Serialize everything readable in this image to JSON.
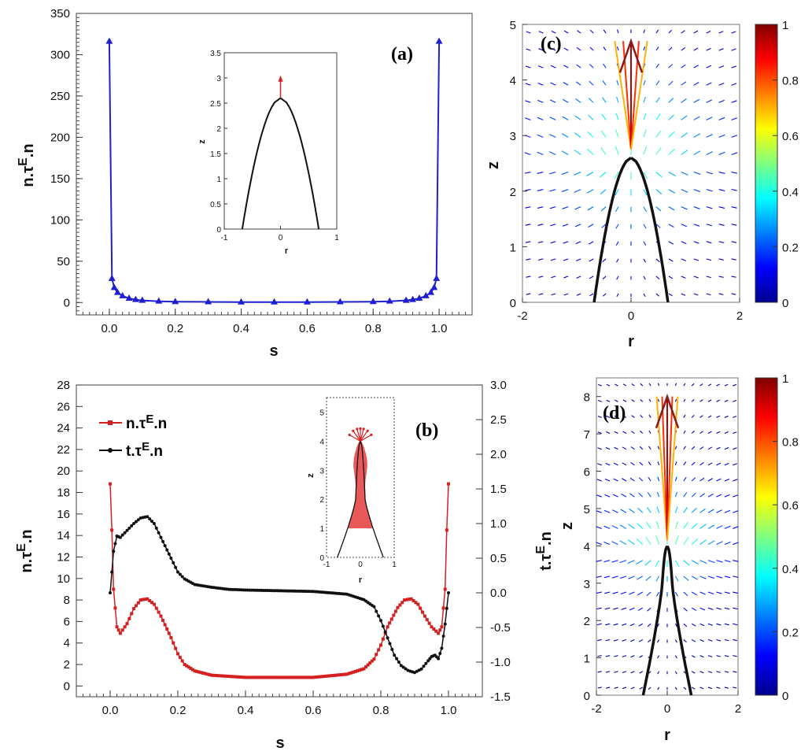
{
  "chart_data": [
    {
      "id": "a",
      "type": "scatter",
      "panel_label": "(a)",
      "xlabel": "s",
      "ylabel": {
        "main": "n.τ",
        "sup": "E",
        "tail": ".n"
      },
      "xlim": [
        -0.1,
        1.1
      ],
      "ylim": [
        -15,
        350
      ],
      "xticks": [
        "0.0",
        "0.2",
        "0.4",
        "0.6",
        "0.8",
        "1.0"
      ],
      "yticks": [
        "0",
        "50",
        "100",
        "150",
        "200",
        "250",
        "300",
        "350"
      ],
      "series": [
        {
          "name": "n.τE.n",
          "color": "#1f1fd0",
          "marker": "triangle",
          "x": [
            0.0,
            0.008,
            0.015,
            0.025,
            0.04,
            0.06,
            0.08,
            0.1,
            0.15,
            0.2,
            0.3,
            0.4,
            0.5,
            0.6,
            0.7,
            0.8,
            0.85,
            0.9,
            0.92,
            0.94,
            0.96,
            0.975,
            0.985,
            0.992,
            1.0
          ],
          "y": [
            316,
            29,
            18,
            12,
            8,
            5,
            3.5,
            2.5,
            1.5,
            1,
            0.7,
            0.5,
            0.5,
            0.5,
            0.7,
            1,
            1.5,
            2.5,
            3.5,
            5,
            8,
            12,
            18,
            29,
            316
          ]
        }
      ],
      "inset": {
        "xlabel": "r",
        "ylabel": "z",
        "xlim": [
          -1,
          1
        ],
        "ylim": [
          0,
          3.5
        ],
        "xticks": [
          "-1",
          "0",
          "1"
        ],
        "yticks": [
          "0",
          "0.5",
          "1",
          "1.5",
          "2",
          "2.5",
          "3",
          "3.5"
        ],
        "tip_z": 2.6,
        "arrow_to_z": 3.05,
        "base_r": 0.68
      }
    },
    {
      "id": "b",
      "type": "line",
      "panel_label": "(b)",
      "xlabel": "s",
      "ylabel": {
        "main": "n.τ",
        "sup": "E",
        "tail": ".n"
      },
      "ylabel_right": {
        "main": "t.τ",
        "sup": "E",
        "tail": ".n"
      },
      "xlim": [
        -0.1,
        1.1
      ],
      "ylim": [
        -1,
        28
      ],
      "ylim_right": [
        -1.5,
        3.0
      ],
      "xticks": [
        "0.0",
        "0.2",
        "0.4",
        "0.6",
        "0.8",
        "1.0"
      ],
      "yticks": [
        "0",
        "2",
        "4",
        "6",
        "8",
        "10",
        "12",
        "14",
        "16",
        "18",
        "20",
        "22",
        "24",
        "26",
        "28"
      ],
      "yticks_right": [
        "-1.5",
        "-1.0",
        "-0.5",
        "0.0",
        "0.5",
        "1.0",
        "1.5",
        "2.0",
        "2.5",
        "3.0"
      ],
      "legend": [
        {
          "main": "n.τ",
          "sup": "E",
          "tail": ".n",
          "color": "#d42020"
        },
        {
          "main": "t.τ",
          "sup": "E",
          "tail": ".n",
          "color": "#111111"
        }
      ],
      "series": [
        {
          "name": "n.τE.n",
          "color": "#d42020",
          "axis": "left",
          "x": [
            0.0,
            0.005,
            0.01,
            0.02,
            0.03,
            0.05,
            0.07,
            0.09,
            0.11,
            0.13,
            0.15,
            0.18,
            0.2,
            0.22,
            0.25,
            0.3,
            0.4,
            0.5,
            0.6,
            0.7,
            0.75,
            0.78,
            0.8,
            0.82,
            0.85,
            0.87,
            0.89,
            0.91,
            0.93,
            0.95,
            0.97,
            0.98,
            0.99,
            0.995,
            1.0
          ],
          "y": [
            18.8,
            14.5,
            9.0,
            5.5,
            4.9,
            5.8,
            7.2,
            8.0,
            8.1,
            7.6,
            6.5,
            4.5,
            3.0,
            2.0,
            1.4,
            1.0,
            0.8,
            0.8,
            0.8,
            1.1,
            1.6,
            2.5,
            3.8,
            5.5,
            7.3,
            8.0,
            8.1,
            7.6,
            6.5,
            5.5,
            4.9,
            5.5,
            9.0,
            14.5,
            18.8
          ]
        },
        {
          "name": "t.τE.n",
          "color": "#111111",
          "axis": "right",
          "x": [
            0.0,
            0.005,
            0.01,
            0.02,
            0.03,
            0.05,
            0.07,
            0.09,
            0.11,
            0.13,
            0.15,
            0.18,
            0.2,
            0.22,
            0.25,
            0.3,
            0.35,
            0.4,
            0.5,
            0.6,
            0.7,
            0.75,
            0.78,
            0.8,
            0.82,
            0.84,
            0.86,
            0.88,
            0.9,
            0.92,
            0.94,
            0.95,
            0.96,
            0.97,
            0.98,
            0.99,
            1.0
          ],
          "y": [
            0.0,
            0.3,
            0.6,
            0.82,
            0.8,
            0.9,
            1.0,
            1.08,
            1.1,
            1.0,
            0.8,
            0.5,
            0.3,
            0.2,
            0.12,
            0.08,
            0.05,
            0.04,
            0.03,
            0.02,
            -0.02,
            -0.1,
            -0.2,
            -0.4,
            -0.65,
            -0.9,
            -1.05,
            -1.12,
            -1.15,
            -1.1,
            -0.98,
            -0.92,
            -0.9,
            -0.95,
            -0.8,
            -0.45,
            0.0
          ]
        }
      ],
      "inset": {
        "xlabel": "r",
        "ylabel": "z",
        "xlim": [
          -1,
          1
        ],
        "ylim": [
          0,
          5.5
        ],
        "xticks": [
          "-1",
          "0",
          "1"
        ],
        "yticks": [
          "0",
          "1",
          "2",
          "3",
          "4",
          "5"
        ],
        "tip_z": 4.0,
        "neck_z": 2.0,
        "base_r": 0.68,
        "neck_r": 0.14
      }
    },
    {
      "id": "c",
      "type": "heatmap",
      "panel_label": "(c)",
      "xlabel": "r",
      "ylabel": "z",
      "xlim": [
        -2,
        2
      ],
      "ylim": [
        0,
        5
      ],
      "xticks": [
        "-2",
        "0",
        "2"
      ],
      "yticks": [
        "0",
        "1",
        "2",
        "3",
        "4",
        "5"
      ],
      "colorbar": {
        "min": 0,
        "max": 1,
        "ticks": [
          "0",
          "0.2",
          "0.4",
          "0.6",
          "0.8",
          "1"
        ]
      },
      "tip_z": 2.6,
      "base_r": 0.68,
      "jet_top_z": 4.7
    },
    {
      "id": "d",
      "type": "heatmap",
      "panel_label": "(d)",
      "xlabel": "r",
      "ylabel": "z",
      "xlim": [
        -2,
        2
      ],
      "ylim": [
        0,
        8.5
      ],
      "xticks": [
        "-2",
        "0",
        "2"
      ],
      "yticks": [
        "0",
        "1",
        "2",
        "3",
        "4",
        "5",
        "6",
        "7",
        "8"
      ],
      "colorbar": {
        "min": 0,
        "max": 1,
        "ticks": [
          "0",
          "0.2",
          "0.4",
          "0.6",
          "0.8",
          "1"
        ]
      },
      "tip_z": 4.0,
      "neck_z": 3.0,
      "base_r": 0.68,
      "neck_r": 0.14,
      "jet_top_z": 8.0
    }
  ]
}
